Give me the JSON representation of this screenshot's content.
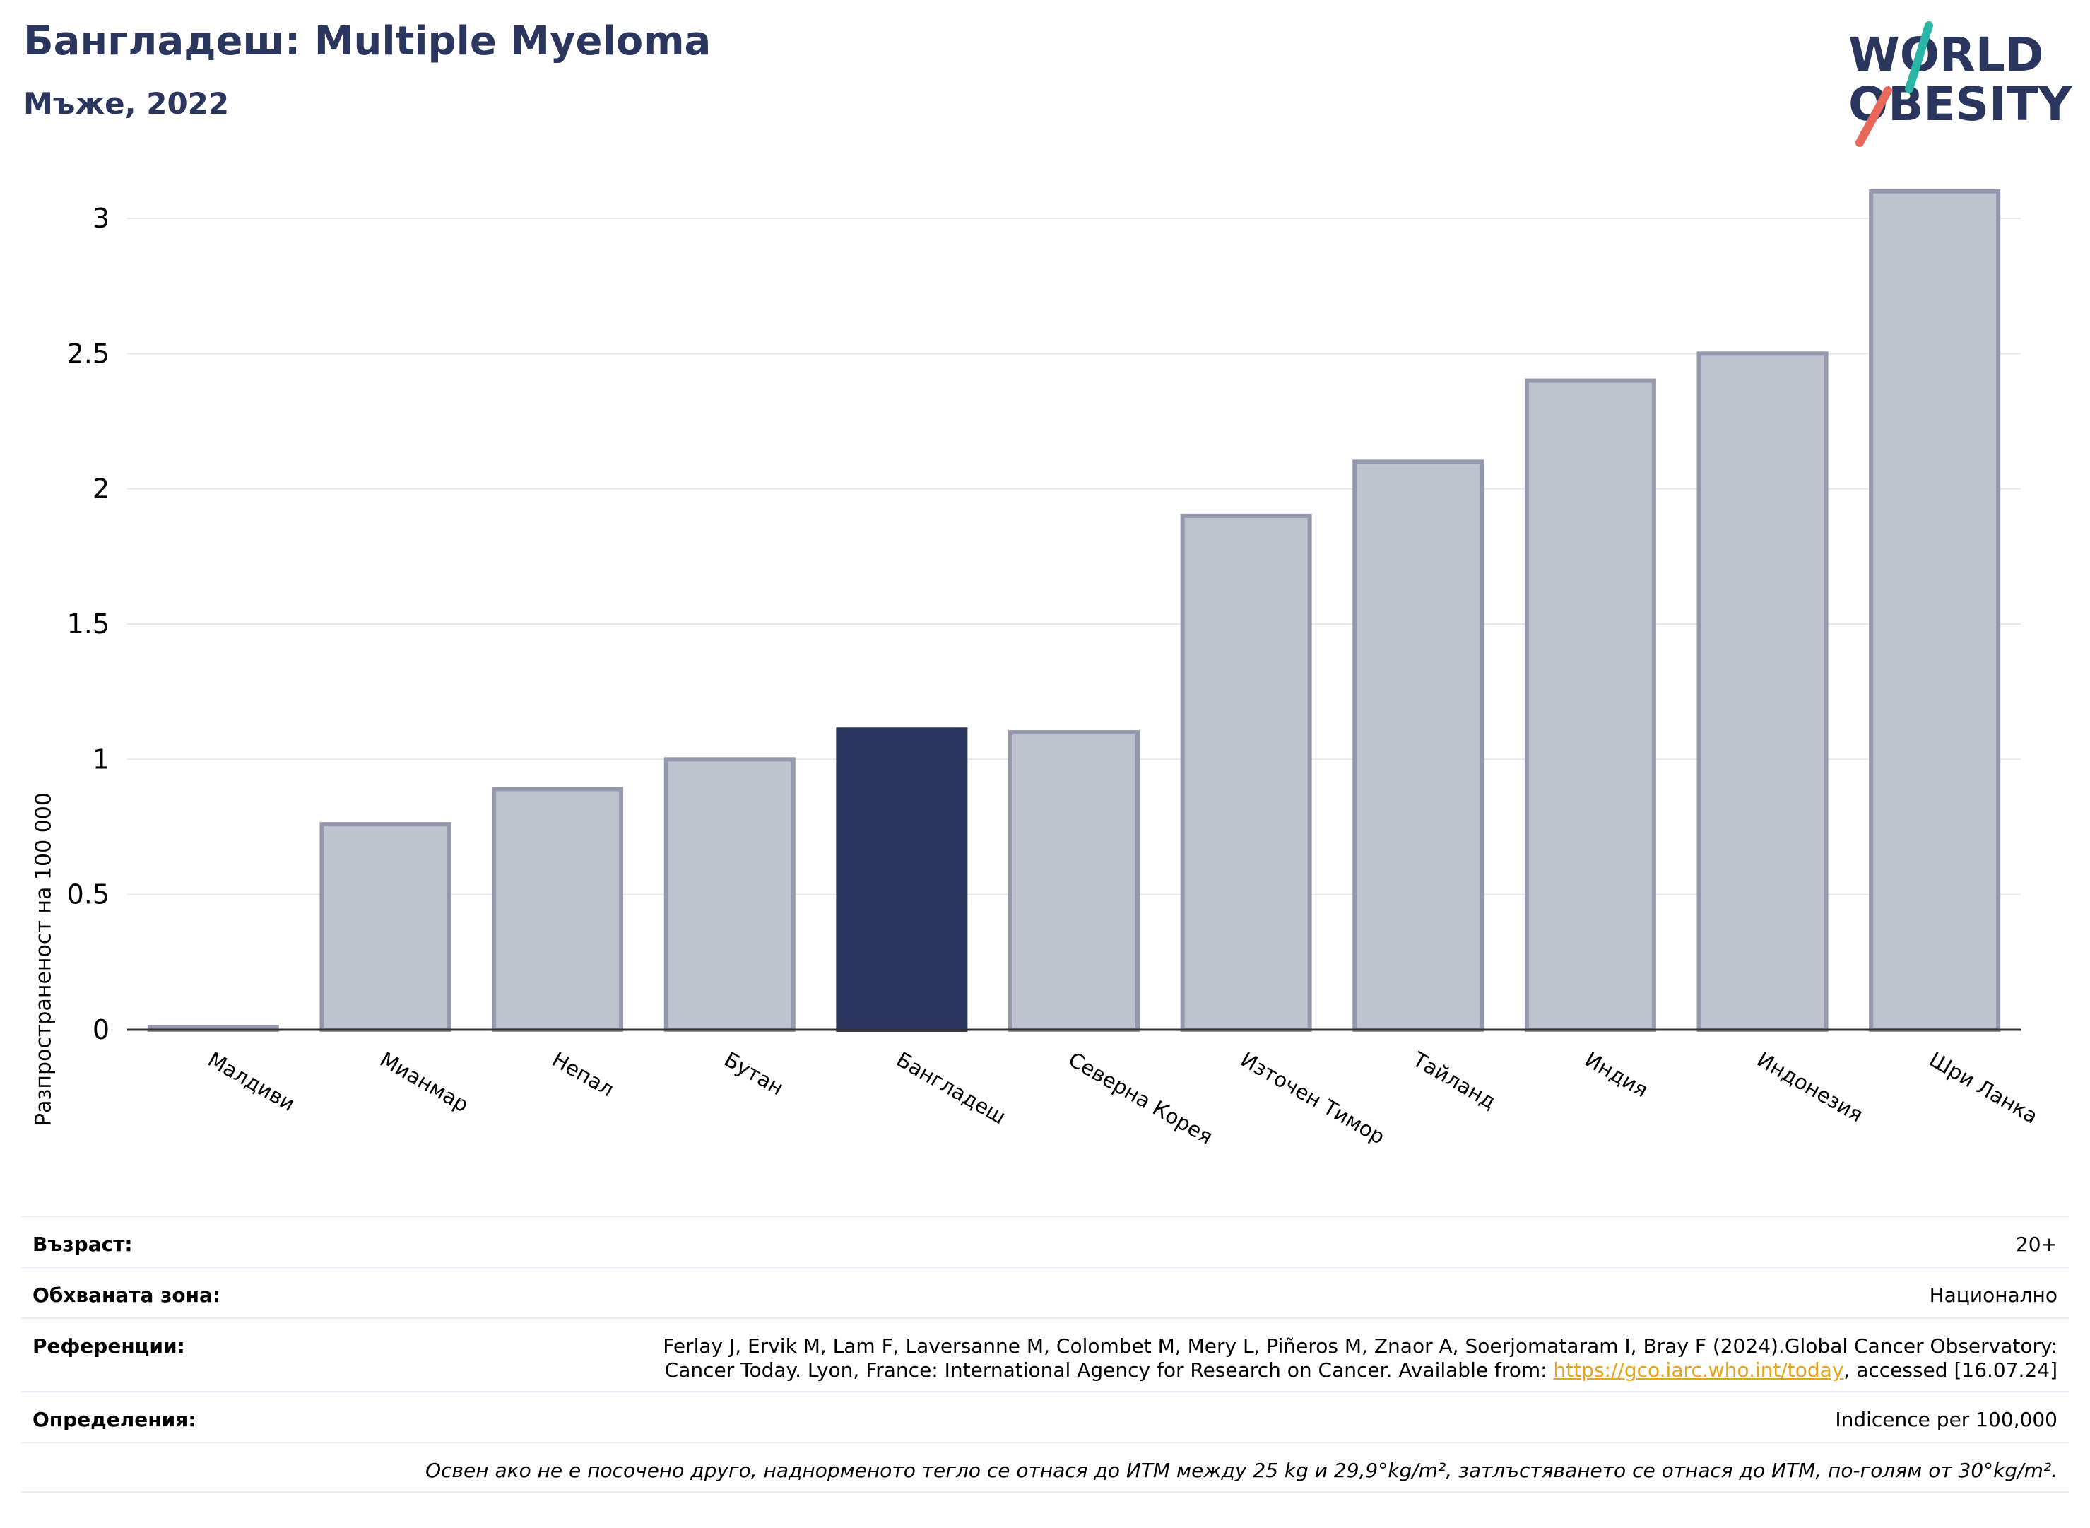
{
  "header": {
    "title": "Бангладеш: Multiple Myeloma",
    "subtitle": "Мъже, 2022"
  },
  "logo": {
    "line1": "WORLD",
    "line2": "OBESITY",
    "name": "world-obesity-logo"
  },
  "colors": {
    "highlight": "#2b365f",
    "bar": "#bfc3ce",
    "bar_border": "#9398ad",
    "grid": "#e6e8ee",
    "link": "#e8a317"
  },
  "chart_data": {
    "type": "bar",
    "categories": [
      "Малдиви",
      "Мианмар",
      "Непал",
      "Бутан",
      "Бангладеш",
      "Северна Корея",
      "Източен Тимор",
      "Тайланд",
      "Индия",
      "Индонезия",
      "Шри Ланка"
    ],
    "values": [
      0.01,
      0.76,
      0.89,
      1.0,
      1.11,
      1.1,
      1.9,
      2.1,
      2.4,
      2.5,
      3.1
    ],
    "highlight": "Бангладеш",
    "ylabel": "Разпространеност  на 100 000",
    "ylim": [
      0,
      3.2
    ],
    "yticks": [
      "0",
      "0.5",
      "1",
      "1.5",
      "2",
      "2.5",
      "3"
    ],
    "ytick_values": [
      0,
      0.5,
      1,
      1.5,
      2,
      2.5,
      3
    ],
    "grid": true
  },
  "info": {
    "age_label": "Възраст:",
    "age_value": "20+",
    "coverage_label": "Обхваната зона:",
    "coverage_value": "Национално",
    "references_label": "Референции:",
    "references_line1": "Ferlay J, Ervik M, Lam F, Laversanne M, Colombet M, Mery L, Piñeros M, Znaor A, Soerjomataram I, Bray F (2024).Global Cancer Observatory:",
    "references_line2_pre": "Cancer Today. Lyon, France: International Agency for Research on Cancer. Available from: ",
    "references_link": "https://gco.iarc.who.int/today",
    "references_line2_post": ", accessed [16.07.24]",
    "definitions_label": "Определения:",
    "definitions_value": "Indicence per 100,000",
    "note": "Освен ако не е посочено друго, наднорменото тегло се отнася до ИТМ между 25 kg и 29,9°kg/m², затлъстяването се отнася до ИТМ, по-голям от 30°kg/m²."
  }
}
